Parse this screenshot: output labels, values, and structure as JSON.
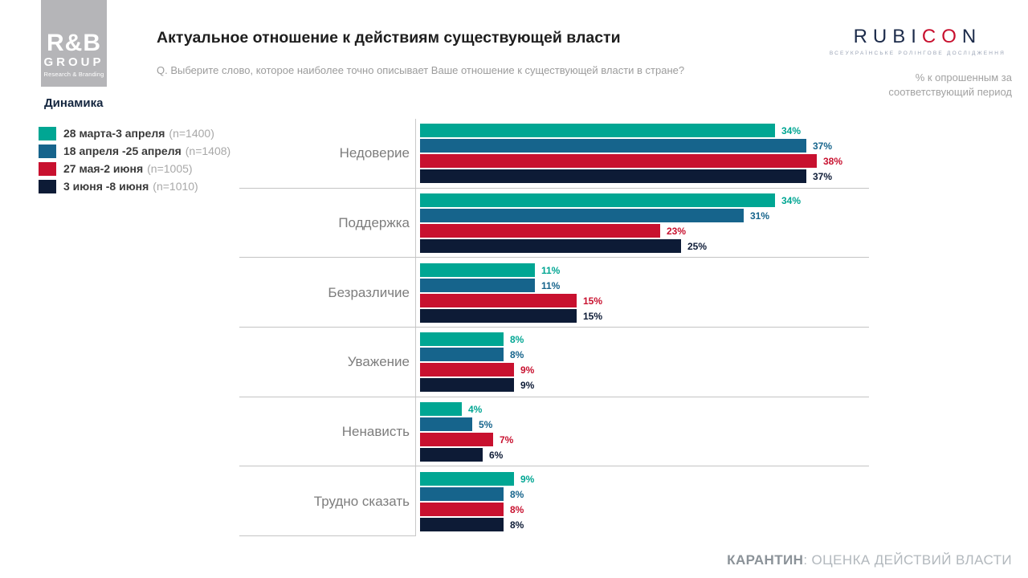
{
  "header": {
    "logo": {
      "line1": "R&B",
      "line2": "GROUP",
      "line3": "Research & Branding"
    },
    "title": "Актуальное отношение к действиям существующей власти",
    "subtitle": "Q. Выберите слово, которое наиболее точно описывает Ваше отношение к существующей власти в стране?",
    "rubicon": {
      "part1": "RUBI",
      "part2": "CO",
      "part3": "N",
      "tagline": "ВСЕУКРАЇНСЬКЕ РОЛІНГОВЕ ДОСЛІДЖЕННЯ"
    },
    "note": {
      "line1": "% к опрошенным за",
      "line2": "соответствующий период"
    }
  },
  "section_label": "Динамика",
  "legend": [
    {
      "label": "28 марта-3 апреля",
      "n": "(n=1400)",
      "color": "#00a693"
    },
    {
      "label": "18 апреля -25 апреля",
      "n": "(n=1408)",
      "color": "#16648c"
    },
    {
      "label": "27 мая-2 июня",
      "n": "(n=1005)",
      "color": "#c8112f"
    },
    {
      "label": "3 июня -8 июня",
      "n": "(n=1010)",
      "color": "#0d1b36"
    }
  ],
  "chart_data": {
    "type": "bar",
    "orientation": "horizontal",
    "title": "Актуальное отношение к действиям существующей власти",
    "categories": [
      "Недоверие",
      "Поддержка",
      "Безразличие",
      "Уважение",
      "Ненависть",
      "Трудно сказать"
    ],
    "series": [
      {
        "name": "28 марта-3 апреля (n=1400)",
        "color": "#00a693",
        "values": [
          34,
          34,
          11,
          8,
          4,
          9
        ]
      },
      {
        "name": "18 апреля -25 апреля (n=1408)",
        "color": "#16648c",
        "values": [
          37,
          31,
          11,
          8,
          5,
          8
        ]
      },
      {
        "name": "27 мая-2 июня (n=1005)",
        "color": "#c8112f",
        "values": [
          38,
          23,
          15,
          9,
          7,
          8
        ]
      },
      {
        "name": "3 июня -8 июня (n=1010)",
        "color": "#0d1b36",
        "values": [
          37,
          25,
          15,
          9,
          6,
          8
        ]
      }
    ],
    "value_suffix": "%",
    "xlim": [
      0,
      42
    ],
    "grid": "category-separators",
    "legend_position": "top-left"
  },
  "footer": {
    "bold": "КАРАНТИН",
    "rest": ": ОЦЕНКА ДЕЙСТВИЙ ВЛАСТИ"
  }
}
